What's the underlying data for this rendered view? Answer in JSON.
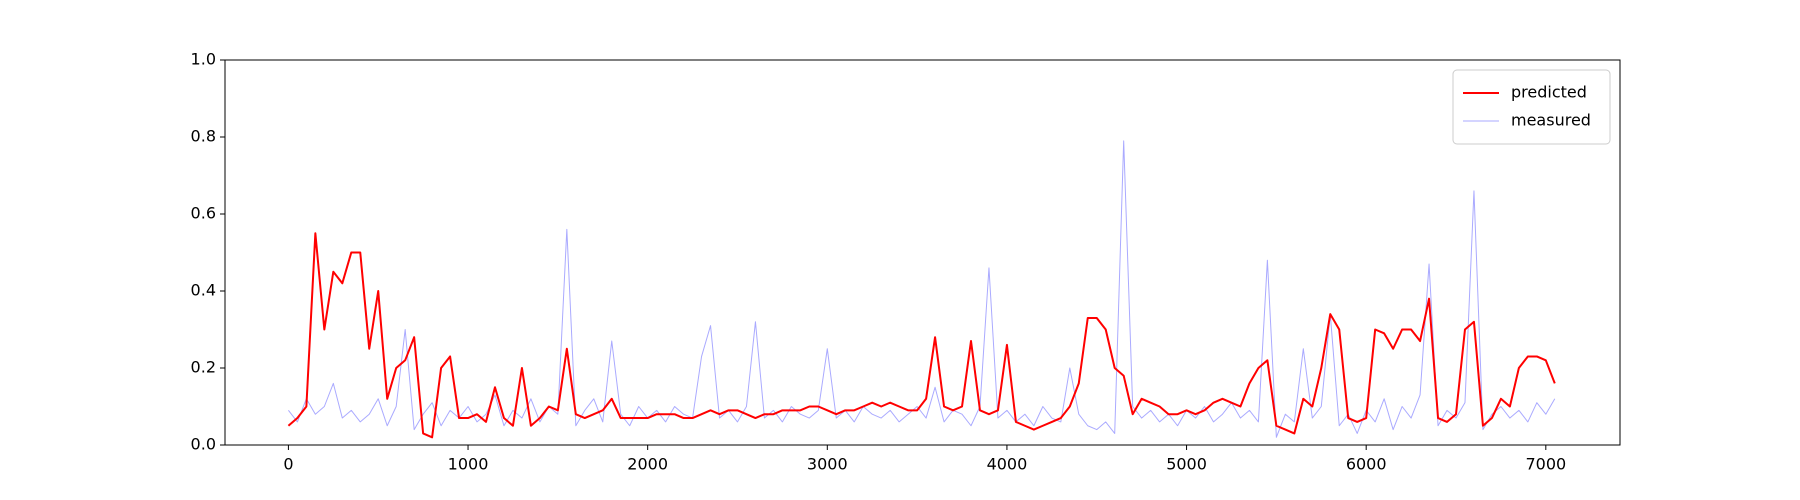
{
  "chart_data": {
    "type": "line",
    "xlim": [
      -353,
      7413
    ],
    "ylim": [
      0,
      1
    ],
    "xticks": [
      0,
      1000,
      2000,
      3000,
      4000,
      5000,
      6000,
      7000
    ],
    "yticks": [
      {
        "value": 0,
        "label": "0.0"
      },
      {
        "value": 0.2,
        "label": "0.2"
      },
      {
        "value": 0.4,
        "label": "0.4"
      },
      {
        "value": 0.6,
        "label": "0.6"
      },
      {
        "value": 0.8,
        "label": "0.8"
      },
      {
        "value": 1,
        "label": "1.0"
      }
    ],
    "legend": "upper right",
    "x": [
      0,
      50,
      100,
      150,
      200,
      250,
      300,
      350,
      400,
      450,
      500,
      550,
      600,
      650,
      700,
      750,
      800,
      850,
      900,
      950,
      1000,
      1050,
      1100,
      1150,
      1200,
      1250,
      1300,
      1350,
      1400,
      1450,
      1500,
      1550,
      1600,
      1650,
      1700,
      1750,
      1800,
      1850,
      1900,
      1950,
      2000,
      2050,
      2100,
      2150,
      2200,
      2250,
      2300,
      2350,
      2400,
      2450,
      2500,
      2550,
      2600,
      2650,
      2700,
      2750,
      2800,
      2850,
      2900,
      2950,
      3000,
      3050,
      3100,
      3150,
      3200,
      3250,
      3300,
      3350,
      3400,
      3450,
      3500,
      3550,
      3600,
      3650,
      3700,
      3750,
      3800,
      3850,
      3900,
      3950,
      4000,
      4050,
      4100,
      4150,
      4200,
      4250,
      4300,
      4350,
      4400,
      4450,
      4500,
      4550,
      4600,
      4650,
      4700,
      4750,
      4800,
      4850,
      4900,
      4950,
      5000,
      5050,
      5100,
      5150,
      5200,
      5250,
      5300,
      5350,
      5400,
      5450,
      5500,
      5550,
      5600,
      5650,
      5700,
      5750,
      5800,
      5850,
      5900,
      5950,
      6000,
      6050,
      6100,
      6150,
      6200,
      6250,
      6300,
      6350,
      6400,
      6450,
      6500,
      6550,
      6600,
      6650,
      6700,
      6750,
      6800,
      6850,
      6900,
      6950,
      7000,
      7050
    ],
    "series": [
      {
        "name": "predicted",
        "color": "#ff0000",
        "width": 2,
        "values": [
          0.05,
          0.07,
          0.1,
          0.55,
          0.3,
          0.45,
          0.42,
          0.5,
          0.5,
          0.25,
          0.4,
          0.12,
          0.2,
          0.22,
          0.28,
          0.03,
          0.02,
          0.2,
          0.23,
          0.07,
          0.07,
          0.08,
          0.06,
          0.15,
          0.07,
          0.05,
          0.2,
          0.05,
          0.07,
          0.1,
          0.09,
          0.25,
          0.08,
          0.07,
          0.08,
          0.09,
          0.12,
          0.07,
          0.07,
          0.07,
          0.07,
          0.08,
          0.08,
          0.08,
          0.07,
          0.07,
          0.08,
          0.09,
          0.08,
          0.09,
          0.09,
          0.08,
          0.07,
          0.08,
          0.08,
          0.09,
          0.09,
          0.09,
          0.1,
          0.1,
          0.09,
          0.08,
          0.09,
          0.09,
          0.1,
          0.11,
          0.1,
          0.11,
          0.1,
          0.09,
          0.09,
          0.12,
          0.28,
          0.1,
          0.09,
          0.1,
          0.27,
          0.09,
          0.08,
          0.09,
          0.26,
          0.06,
          0.05,
          0.04,
          0.05,
          0.06,
          0.07,
          0.1,
          0.16,
          0.33,
          0.33,
          0.3,
          0.2,
          0.18,
          0.08,
          0.12,
          0.11,
          0.1,
          0.08,
          0.08,
          0.09,
          0.08,
          0.09,
          0.11,
          0.12,
          0.11,
          0.1,
          0.16,
          0.2,
          0.22,
          0.05,
          0.04,
          0.03,
          0.12,
          0.1,
          0.2,
          0.34,
          0.3,
          0.07,
          0.06,
          0.07,
          0.3,
          0.29,
          0.25,
          0.3,
          0.3,
          0.27,
          0.38,
          0.07,
          0.06,
          0.08,
          0.3,
          0.32,
          0.05,
          0.07,
          0.12,
          0.1,
          0.2,
          0.23,
          0.23,
          0.22,
          0.16
        ]
      },
      {
        "name": "measured",
        "color": "#aaaaff",
        "width": 1,
        "values": [
          0.09,
          0.06,
          0.12,
          0.08,
          0.1,
          0.16,
          0.07,
          0.09,
          0.06,
          0.08,
          0.12,
          0.05,
          0.1,
          0.3,
          0.04,
          0.08,
          0.11,
          0.05,
          0.09,
          0.07,
          0.1,
          0.06,
          0.08,
          0.13,
          0.05,
          0.09,
          0.07,
          0.12,
          0.06,
          0.1,
          0.08,
          0.56,
          0.05,
          0.09,
          0.12,
          0.06,
          0.27,
          0.08,
          0.05,
          0.1,
          0.07,
          0.09,
          0.06,
          0.1,
          0.08,
          0.07,
          0.23,
          0.31,
          0.07,
          0.09,
          0.06,
          0.1,
          0.32,
          0.07,
          0.09,
          0.06,
          0.1,
          0.08,
          0.07,
          0.09,
          0.25,
          0.07,
          0.09,
          0.06,
          0.1,
          0.08,
          0.07,
          0.09,
          0.06,
          0.08,
          0.1,
          0.07,
          0.15,
          0.06,
          0.09,
          0.08,
          0.05,
          0.1,
          0.46,
          0.07,
          0.09,
          0.06,
          0.08,
          0.05,
          0.1,
          0.07,
          0.06,
          0.2,
          0.08,
          0.05,
          0.04,
          0.06,
          0.03,
          0.79,
          0.1,
          0.07,
          0.09,
          0.06,
          0.08,
          0.05,
          0.09,
          0.07,
          0.1,
          0.06,
          0.08,
          0.11,
          0.07,
          0.09,
          0.06,
          0.48,
          0.02,
          0.08,
          0.06,
          0.25,
          0.07,
          0.1,
          0.34,
          0.05,
          0.08,
          0.03,
          0.09,
          0.06,
          0.12,
          0.04,
          0.1,
          0.07,
          0.13,
          0.47,
          0.05,
          0.09,
          0.07,
          0.11,
          0.66,
          0.04,
          0.08,
          0.1,
          0.07,
          0.09,
          0.06,
          0.11,
          0.08,
          0.12
        ]
      }
    ]
  }
}
